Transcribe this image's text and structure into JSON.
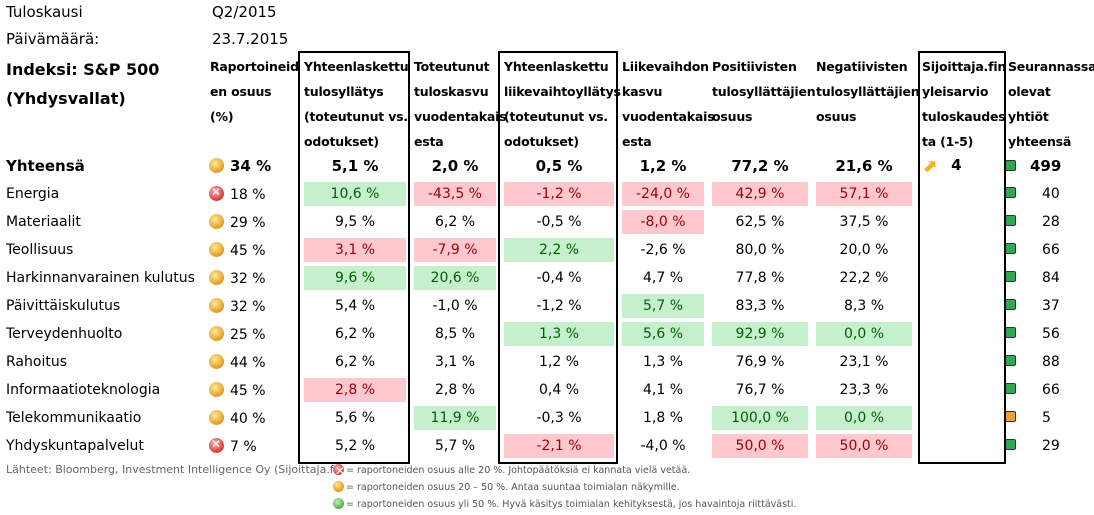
{
  "meta": {
    "period_label": "Tuloskausi",
    "period_value": "Q2/2015",
    "date_label": "Päivämäärä:",
    "date_value": "23.7.2015"
  },
  "index_title_line1": "Indeksi: S&P 500",
  "index_title_line2": "(Yhdysvallat)",
  "headers": {
    "reported": [
      "Raportoineid",
      "en osuus (%)"
    ],
    "eps_surprise": [
      "Yhteenlaskettu",
      "tulosyllätys",
      "(toteutunut vs.",
      "odotukset)"
    ],
    "eps_growth": [
      "Toteutunut",
      "tuloskasvu",
      "vuodentakais",
      "esta"
    ],
    "rev_surprise": [
      "Yhteenlaskettu",
      "liikevaihtoyllätys",
      "(toteutunut vs.",
      "odotukset)"
    ],
    "rev_growth": [
      "Liikevaihdon",
      "kasvu",
      "vuodentakais",
      "esta"
    ],
    "positive": [
      "Positiivisten",
      "tulosyllättäjien",
      "osuus"
    ],
    "negative": [
      "Negatiivisten",
      "tulosyllättäjien",
      "osuus"
    ],
    "estimate": [
      "Sijoittaja.fin",
      "yleisarvio",
      "tuloskaudes",
      "ta (1-5)"
    ],
    "companies": [
      "Seurannassa",
      "olevat yhtiöt",
      "yhteensä"
    ]
  },
  "total": {
    "name": "Yhteensä",
    "reported": "34 %",
    "eps_surprise": "5,1 %",
    "eps_growth": "2,0 %",
    "rev_surprise": "0,5 %",
    "rev_growth": "1,2 %",
    "positive": "77,2 %",
    "negative": "21,6 %",
    "estimate": "4",
    "companies": "499"
  },
  "rows": [
    {
      "name": "Energia",
      "ball": "red",
      "reported": "18 %",
      "eps_surprise": "10,6 %",
      "eps_growth": "-43,5 %",
      "rev_surprise": "-1,2 %",
      "rev_growth": "-24,0 %",
      "positive": "42,9 %",
      "negative": "57,1 %",
      "companies": "40",
      "status": "green"
    },
    {
      "name": "Materiaalit",
      "ball": "yellow",
      "reported": "29 %",
      "eps_surprise": "9,5 %",
      "eps_growth": "6,2 %",
      "rev_surprise": "-0,5 %",
      "rev_growth": "-8,0 %",
      "positive": "62,5 %",
      "negative": "37,5 %",
      "companies": "28",
      "status": "green"
    },
    {
      "name": "Teollisuus",
      "ball": "yellow",
      "reported": "45 %",
      "eps_surprise": "3,1 %",
      "eps_growth": "-7,9 %",
      "rev_surprise": "2,2 %",
      "rev_growth": "-2,6 %",
      "positive": "80,0 %",
      "negative": "20,0 %",
      "companies": "66",
      "status": "green"
    },
    {
      "name": "Harkinnanvarainen kulutus",
      "ball": "yellow",
      "reported": "32 %",
      "eps_surprise": "9,6 %",
      "eps_growth": "20,6 %",
      "rev_surprise": "-0,4 %",
      "rev_growth": "4,7 %",
      "positive": "77,8 %",
      "negative": "22,2 %",
      "companies": "84",
      "status": "green"
    },
    {
      "name": "Päivittäiskulutus",
      "ball": "yellow",
      "reported": "32 %",
      "eps_surprise": "5,4 %",
      "eps_growth": "-1,0 %",
      "rev_surprise": "-1,2 %",
      "rev_growth": "5,7 %",
      "positive": "83,3 %",
      "negative": "8,3 %",
      "companies": "37",
      "status": "green"
    },
    {
      "name": "Terveydenhuolto",
      "ball": "yellow",
      "reported": "25 %",
      "eps_surprise": "6,2 %",
      "eps_growth": "8,5 %",
      "rev_surprise": "1,3 %",
      "rev_growth": "5,6 %",
      "positive": "92,9 %",
      "negative": "0,0 %",
      "companies": "56",
      "status": "green"
    },
    {
      "name": "Rahoitus",
      "ball": "yellow",
      "reported": "44 %",
      "eps_surprise": "6,2 %",
      "eps_growth": "3,1 %",
      "rev_surprise": "1,2 %",
      "rev_growth": "1,3 %",
      "positive": "76,9 %",
      "negative": "23,1 %",
      "companies": "88",
      "status": "green"
    },
    {
      "name": "Informaatioteknologia",
      "ball": "yellow",
      "reported": "45 %",
      "eps_surprise": "2,8 %",
      "eps_growth": "2,8 %",
      "rev_surprise": "0,4 %",
      "rev_growth": "4,1 %",
      "positive": "76,7 %",
      "negative": "23,3 %",
      "companies": "66",
      "status": "green"
    },
    {
      "name": "Telekommunikaatio",
      "ball": "yellow",
      "reported": "40 %",
      "eps_surprise": "5,6 %",
      "eps_growth": "11,9 %",
      "rev_surprise": "-0,3 %",
      "rev_growth": "1,8 %",
      "positive": "100,0 %",
      "negative": "0,0 %",
      "companies": "5",
      "status": "orange"
    },
    {
      "name": "Yhdyskuntapalvelut",
      "ball": "red",
      "reported": "7 %",
      "eps_surprise": "5,2 %",
      "eps_growth": "5,7 %",
      "rev_surprise": "-2,1 %",
      "rev_growth": "-4,0 %",
      "positive": "50,0 %",
      "negative": "50,0 %",
      "companies": "29",
      "status": "green"
    }
  ],
  "highlights": {
    "green": [
      "#c6efce",
      "#006100"
    ],
    "red": [
      "#ffc7ce",
      "#9c0006"
    ]
  },
  "footer": {
    "source": "Lähteet: Bloomberg, Investment Intelligence Oy (Sijoittaja.fi)",
    "legend": [
      {
        "ball": "red",
        "text": "= raportoneiden osuus alle 20 %. Johtopäätöksiä ei kannata vielä vetää."
      },
      {
        "ball": "yellow",
        "text": "= raportoneiden osuus 20 – 50 %. Antaa suuntaa toimialan näkymille."
      },
      {
        "ball": "green",
        "text": "= raportoneiden osuus yli 50 %. Hyvä käsitys toimialan kehityksestä, jos havaintoja riittävästi."
      }
    ]
  }
}
